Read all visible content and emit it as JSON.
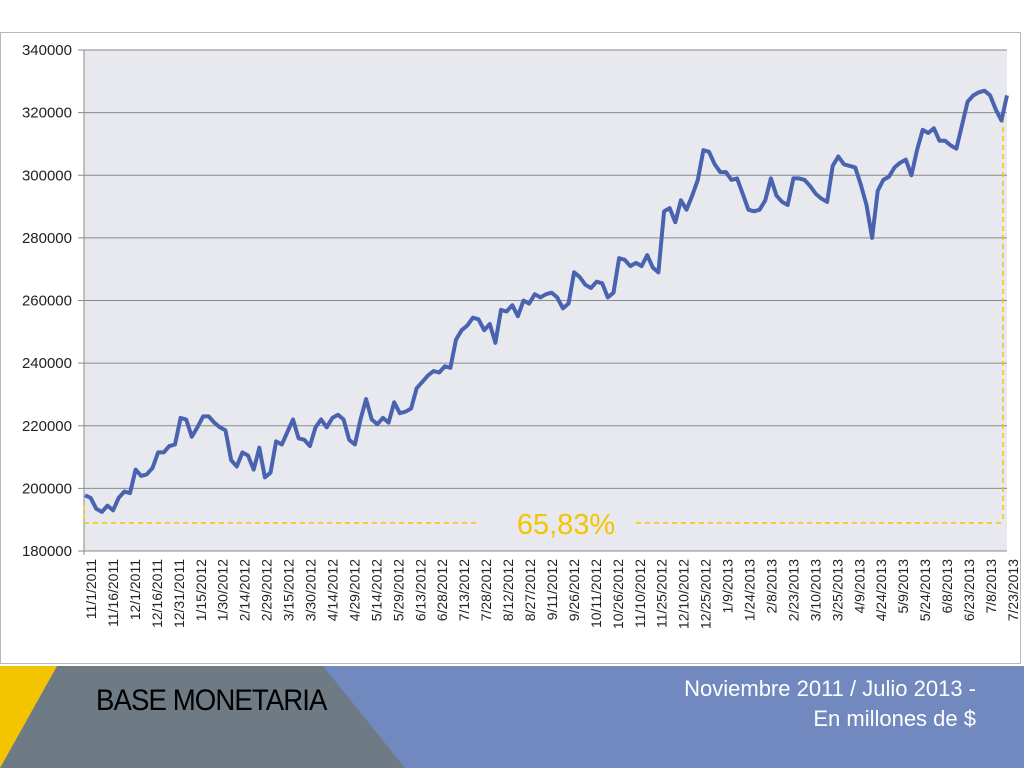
{
  "banner": {
    "title": "BASE MONETARIA",
    "subtitle_line1": "Noviembre 2011 / Julio 2013 -",
    "subtitle_line2": "En millones de $",
    "colors": {
      "yellow": "#f5c400",
      "gray": "#6e7a84",
      "blue": "#7189bf"
    }
  },
  "chart_data": {
    "type": "line",
    "title": "",
    "xlabel": "",
    "ylabel": "",
    "ylim": [
      180000,
      340000
    ],
    "yticks": [
      180000,
      200000,
      220000,
      240000,
      260000,
      280000,
      300000,
      320000,
      340000
    ],
    "xtick_labels": [
      "11/1/2011",
      "11/16/2011",
      "12/1/2011",
      "12/16/2011",
      "12/31/2011",
      "1/15/2012",
      "1/30/2012",
      "2/14/2012",
      "2/29/2012",
      "3/15/2012",
      "3/30/2012",
      "4/14/2012",
      "4/29/2012",
      "5/14/2012",
      "5/29/2012",
      "6/13/2012",
      "6/28/2012",
      "7/13/2012",
      "7/28/2012",
      "8/12/2012",
      "8/27/2012",
      "9/11/2012",
      "9/26/2012",
      "10/11/2012",
      "10/26/2012",
      "11/10/2012",
      "11/25/2012",
      "12/10/2012",
      "12/25/2012",
      "1/9/2013",
      "1/24/2013",
      "2/8/2013",
      "2/23/2013",
      "3/10/2013",
      "3/25/2013",
      "4/9/2013",
      "4/24/2013",
      "5/9/2013",
      "5/24/2013",
      "6/8/2013",
      "6/23/2013",
      "7/8/2013",
      "7/23/2013"
    ],
    "x_range_days": [
      0,
      632
    ],
    "grid": true,
    "line_color": "#4a63b0",
    "series": [
      {
        "name": "Base monetaria",
        "values": [
          197800,
          197000,
          193500,
          192500,
          194500,
          193000,
          197000,
          199000,
          198500,
          206000,
          204000,
          204500,
          206500,
          211500,
          211500,
          213500,
          214000,
          222500,
          222000,
          216500,
          219500,
          223000,
          223000,
          221000,
          219500,
          218500,
          209000,
          207000,
          211500,
          210500,
          206000,
          213000,
          203500,
          205000,
          215000,
          214000,
          218000,
          222000,
          216000,
          215500,
          213500,
          219500,
          222000,
          219500,
          222500,
          223500,
          222000,
          215500,
          214000,
          222000,
          228500,
          222000,
          220500,
          222500,
          221000,
          227500,
          224000,
          224500,
          225500,
          232000,
          234000,
          236000,
          237500,
          237000,
          239000,
          238500,
          247500,
          250500,
          252000,
          254500,
          254000,
          250500,
          252500,
          246500,
          257000,
          256500,
          258500,
          255000,
          260000,
          259000,
          262000,
          261000,
          262000,
          262500,
          261000,
          257500,
          259000,
          269000,
          267500,
          265000,
          264000,
          266000,
          265500,
          261000,
          262500,
          273500,
          273000,
          271000,
          272000,
          271000,
          274500,
          270500,
          269000,
          288500,
          289500,
          285000,
          292000,
          289000,
          293500,
          298500,
          308000,
          307500,
          303500,
          301000,
          301000,
          298500,
          299000,
          294000,
          289000,
          288500,
          289000,
          292000,
          299000,
          293500,
          291500,
          290500,
          299000,
          299000,
          298500,
          296500,
          294000,
          292500,
          291500,
          303000,
          306000,
          303500,
          303000,
          302500,
          297000,
          290500,
          280000,
          295000,
          298500,
          299500,
          302500,
          304000,
          305000,
          300000,
          308000,
          314500,
          313500,
          315000,
          311000,
          311000,
          309500,
          308500,
          316000,
          323500,
          325500,
          326500,
          327000,
          325500,
          321000,
          317500,
          325500
        ]
      }
    ],
    "annotations": [
      {
        "text": "65,83%",
        "color": "#f5c400",
        "baseline_value": 189000
      }
    ]
  }
}
